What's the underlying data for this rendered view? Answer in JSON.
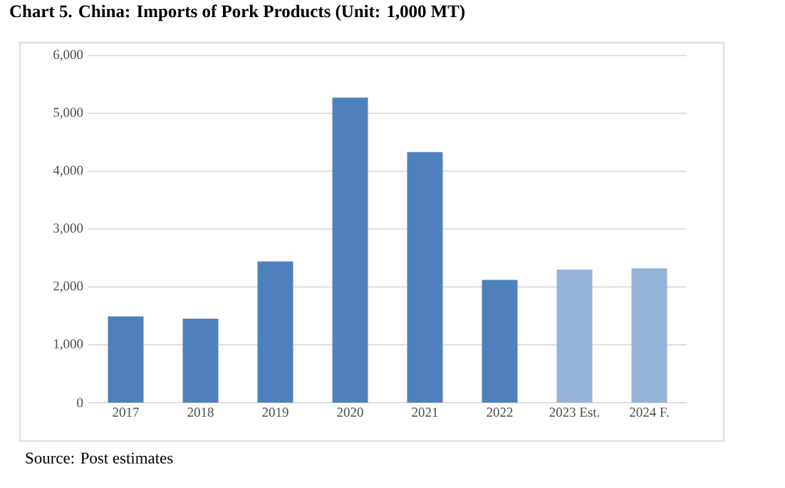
{
  "chart_data": {
    "type": "bar",
    "title": "Chart 5. China: Imports of Pork Products (Unit: 1,000 MT)",
    "categories": [
      "2017",
      "2018",
      "2019",
      "2020",
      "2021",
      "2022",
      "2023 Est.",
      "2024 F."
    ],
    "values": [
      1490,
      1450,
      2440,
      5270,
      4330,
      2120,
      2300,
      2320
    ],
    "colors": [
      "#4f81bd",
      "#4f81bd",
      "#4f81bd",
      "#4f81bd",
      "#4f81bd",
      "#4f81bd",
      "#95b3d7",
      "#95b3d7"
    ],
    "ylim": [
      0,
      6000
    ],
    "yticks": [
      {
        "value": 0,
        "label": "0"
      },
      {
        "value": 1000,
        "label": "1,000"
      },
      {
        "value": 2000,
        "label": "2,000"
      },
      {
        "value": 3000,
        "label": "3,000"
      },
      {
        "value": 4000,
        "label": "4,000"
      },
      {
        "value": 5000,
        "label": "5,000"
      },
      {
        "value": 6000,
        "label": "6,000"
      }
    ],
    "grid": "y",
    "annotations": [
      "Source: Post estimates"
    ]
  }
}
